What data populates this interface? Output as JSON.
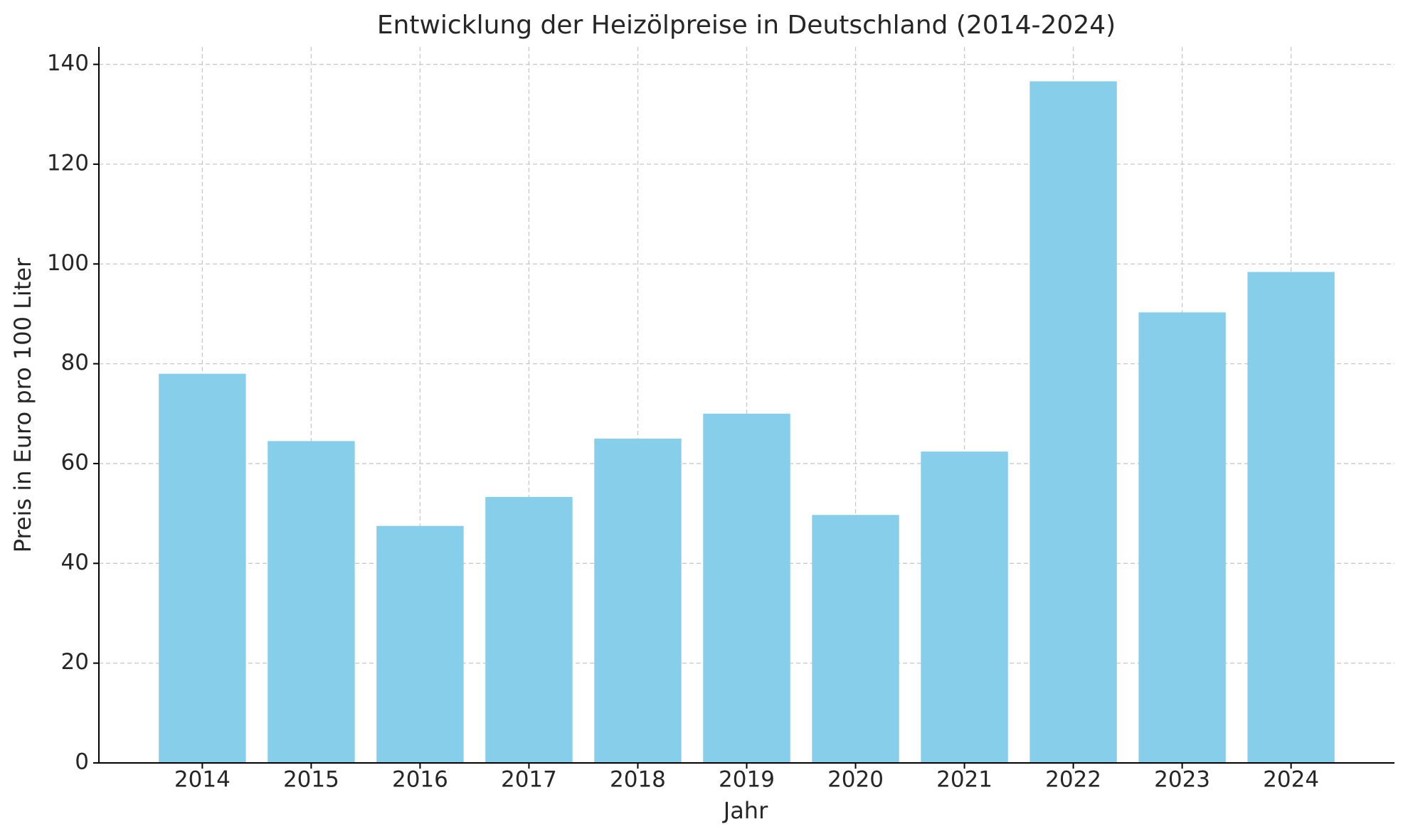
{
  "chart_data": {
    "type": "bar",
    "title": "Entwicklung der Heizölpreise in Deutschland (2014-2024)",
    "x_label": "Jahr",
    "y_label": "Preis in Euro pro 100 Liter",
    "categories": [
      "2014",
      "2015",
      "2016",
      "2017",
      "2018",
      "2019",
      "2020",
      "2021",
      "2022",
      "2023",
      "2024"
    ],
    "values": [
      78,
      64.5,
      47.5,
      53.3,
      65,
      70,
      49.7,
      62.4,
      136.6,
      90.3,
      98.4
    ],
    "color": "#87ceeb",
    "ylim": [
      0,
      143.5
    ],
    "yticks": [
      0,
      20,
      40,
      60,
      80,
      100,
      120,
      140
    ],
    "grid": true
  }
}
